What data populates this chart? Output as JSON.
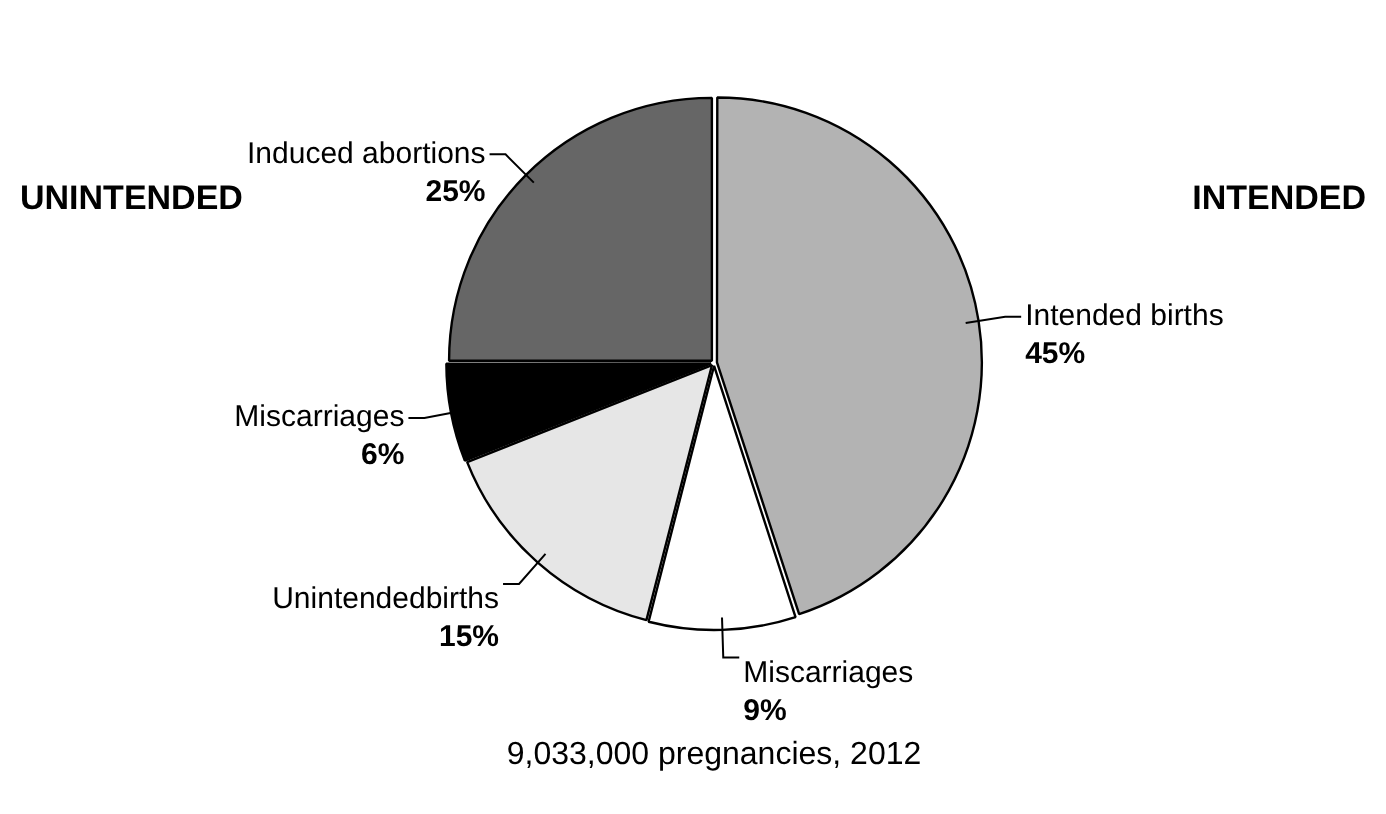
{
  "chart_data": {
    "type": "pie",
    "title": "9,033,000 pregnancies, 2012",
    "categories": [
      "Intended births",
      "Miscarriages",
      "Unintendedbirths",
      "Miscarriages",
      "Induced abortions"
    ],
    "values": [
      45,
      9,
      15,
      6,
      25
    ],
    "value_labels": [
      "45%",
      "9%",
      "15%",
      "6%",
      "25%"
    ],
    "colors": [
      "#b3b3b3",
      "#ffffff",
      "#e6e6e6",
      "#000000",
      "#666666"
    ],
    "annotations": [
      "UNINTENDED",
      "INTENDED"
    ],
    "legend": false
  }
}
